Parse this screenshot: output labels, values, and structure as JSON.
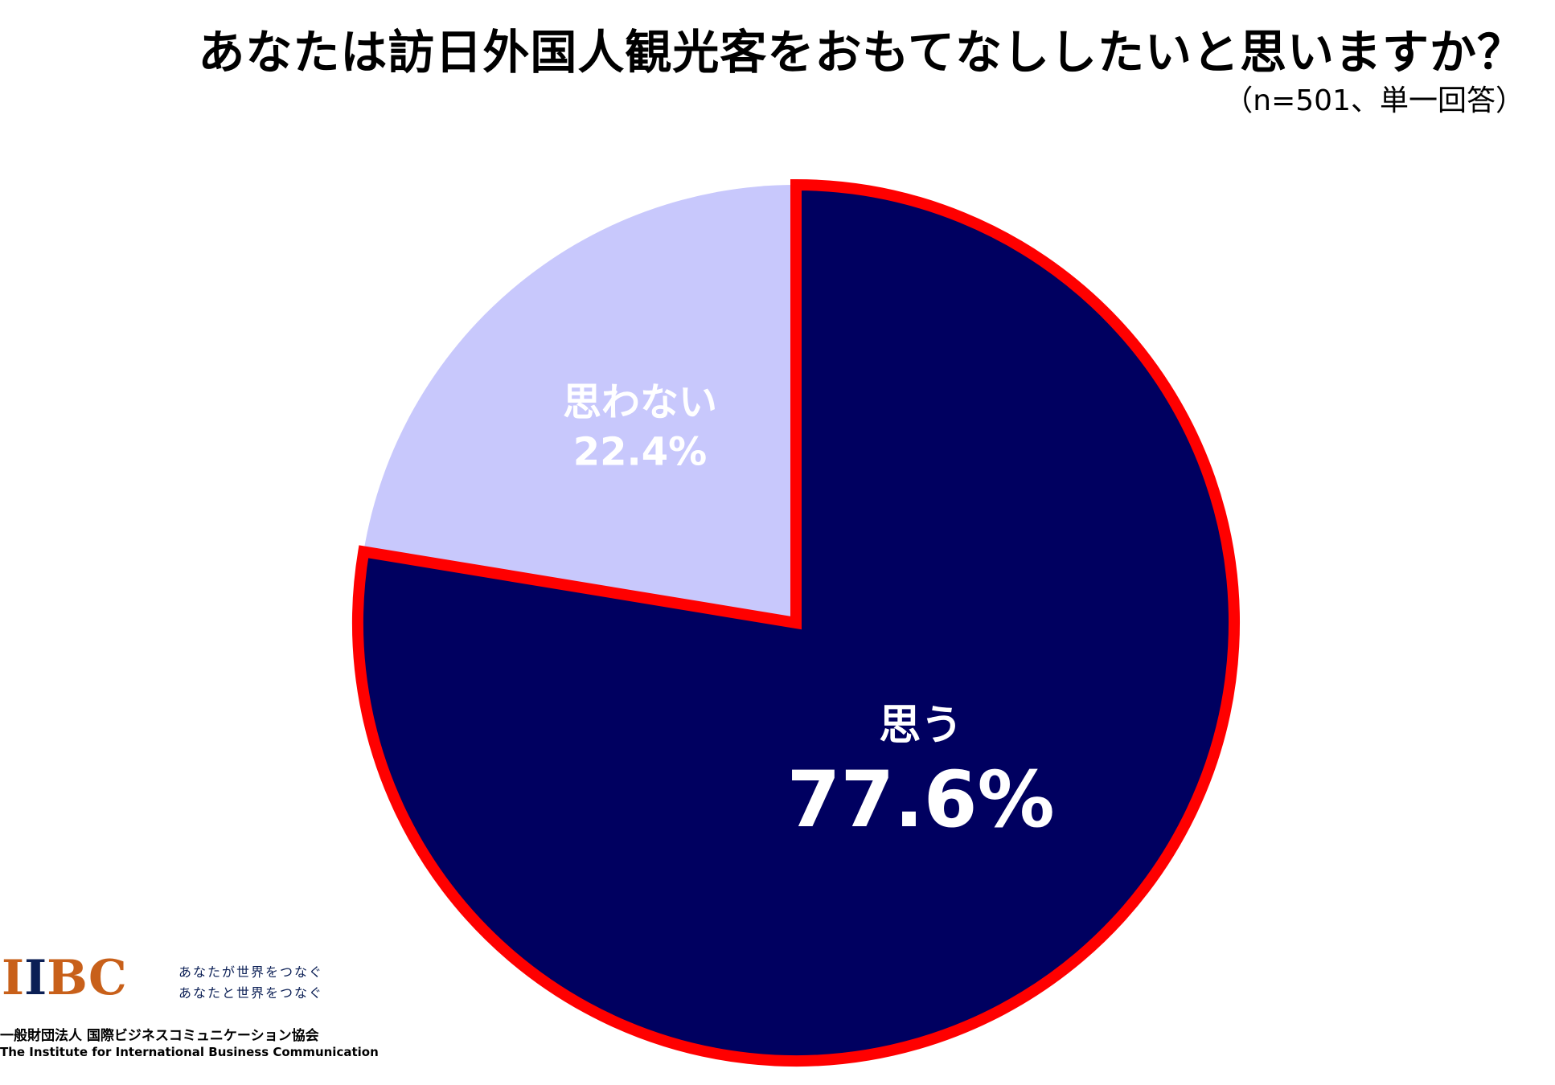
{
  "title": "あなたは訪日外国人観光客をおもてなししたいと思いますか？",
  "subtitle": "（n=501、単一回答）",
  "colors": {
    "slice_yes": "#000060",
    "slice_no": "#c8c8fc",
    "highlight_border": "#ff0000",
    "label_text": "#ffffff"
  },
  "chart_data": {
    "type": "pie",
    "slices": [
      {
        "label": "思う",
        "value": 77.6,
        "value_label": "77.6%",
        "highlighted": true
      },
      {
        "label": "思わない",
        "value": 22.4,
        "value_label": "22.4%",
        "highlighted": false
      }
    ],
    "start_angle": "12 o'clock",
    "direction": "clockwise"
  },
  "logo": {
    "mark_letters": [
      "I",
      "I",
      "B",
      "C"
    ],
    "tagline_1": "あなたが世界をつなぐ",
    "tagline_2": "あなたと世界をつなぐ",
    "org_name_ja": "一般財団法人 国際ビジネスコミュニケーション協会",
    "org_name_en": "The Institute for International Business Communication"
  }
}
